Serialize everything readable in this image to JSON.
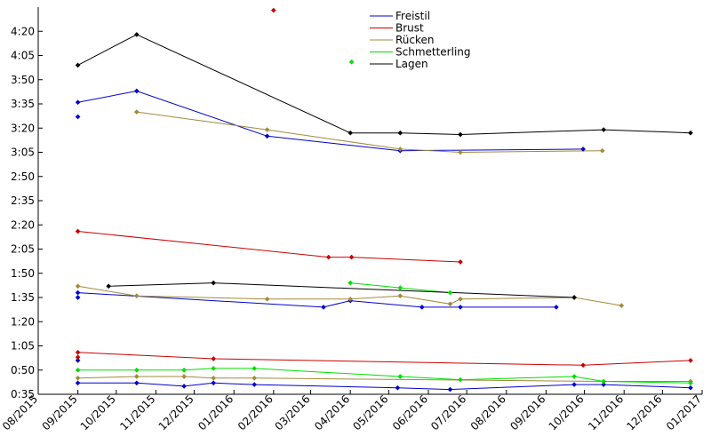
{
  "chart_data": {
    "type": "line",
    "title": "",
    "xlabel": "",
    "ylabel": "",
    "x_axis": {
      "type": "date",
      "range": [
        "2015-08-01",
        "2017-01-01"
      ],
      "tick_labels": [
        "08/2015",
        "09/2015",
        "10/2015",
        "11/2015",
        "12/2015",
        "01/2016",
        "02/2016",
        "03/2016",
        "04/2016",
        "05/2016",
        "06/2016",
        "07/2016",
        "08/2016",
        "09/2016",
        "10/2016",
        "11/2016",
        "12/2016",
        "01/2017"
      ]
    },
    "y_axis": {
      "unit": "seconds",
      "range": [
        35,
        275
      ],
      "tick_values": [
        35,
        50,
        65,
        80,
        95,
        110,
        125,
        140,
        155,
        170,
        185,
        200,
        215,
        230,
        245,
        260
      ],
      "tick_labels": [
        "0:35",
        "0:50",
        "1:05",
        "1:20",
        "1:35",
        "1:50",
        "2:05",
        "2:20",
        "2:35",
        "2:50",
        "3:05",
        "3:20",
        "3:35",
        "3:50",
        "4:05",
        "4:20"
      ]
    },
    "legend": {
      "position": "top-center",
      "entries": [
        {
          "name": "Freistil",
          "color": "#0000cc"
        },
        {
          "name": "Brust",
          "color": "#cc0000"
        },
        {
          "name": "Rücken",
          "color": "#a08a3c"
        },
        {
          "name": "Schmetterling",
          "color": "#00dd00"
        },
        {
          "name": "Lagen",
          "color": "#000000"
        }
      ]
    },
    "series": [
      {
        "name": "Freistil",
        "stroke": "Freistil",
        "group": "200m",
        "points": [
          [
            "2015-09-01",
            216
          ],
          [
            "2015-10-17",
            223
          ],
          [
            "2016-01-27",
            195
          ],
          [
            "2016-05-10",
            186
          ],
          [
            "2016-09-30",
            187
          ]
        ]
      },
      {
        "name": "Freistil",
        "stroke": "Freistil",
        "group": "200m-extra",
        "points": [
          [
            "2015-09-01",
            207
          ]
        ]
      },
      {
        "name": "Freistil",
        "stroke": "Freistil",
        "group": "100m",
        "points": [
          [
            "2015-09-01",
            98
          ],
          [
            "2016-03-11",
            89
          ],
          [
            "2016-04-01",
            93
          ],
          [
            "2016-05-27",
            89
          ],
          [
            "2016-06-26",
            89
          ],
          [
            "2016-09-09",
            89
          ]
        ]
      },
      {
        "name": "Freistil",
        "stroke": "Freistil",
        "group": "100m-extra",
        "points": [
          [
            "2015-09-01",
            95
          ]
        ]
      },
      {
        "name": "Freistil",
        "stroke": "Freistil",
        "group": "50m",
        "points": [
          [
            "2015-09-01",
            42
          ],
          [
            "2015-10-17",
            42
          ],
          [
            "2015-11-23",
            40
          ],
          [
            "2015-12-16",
            42
          ],
          [
            "2016-01-17",
            41
          ],
          [
            "2016-05-08",
            39
          ],
          [
            "2016-06-18",
            38
          ],
          [
            "2016-09-23",
            41
          ],
          [
            "2016-10-16",
            41
          ],
          [
            "2016-12-23",
            39
          ]
        ]
      },
      {
        "name": "Freistil",
        "stroke": "Freistil",
        "group": "50m-extra",
        "points": [
          [
            "2015-09-01",
            56
          ]
        ]
      },
      {
        "name": "Brust",
        "stroke": "Brust",
        "group": "100m",
        "points": [
          [
            "2015-09-01",
            136
          ],
          [
            "2016-03-15",
            120
          ],
          [
            "2016-04-02",
            120
          ],
          [
            "2016-06-26",
            117
          ]
        ]
      },
      {
        "name": "Brust",
        "stroke": "Brust",
        "group": "50m",
        "points": [
          [
            "2015-09-01",
            61
          ],
          [
            "2015-12-16",
            57
          ],
          [
            "2016-09-30",
            53
          ],
          [
            "2016-12-23",
            56
          ]
        ]
      },
      {
        "name": "Brust",
        "stroke": "Brust",
        "group": "50m-extra",
        "points": [
          [
            "2015-09-01",
            58
          ]
        ]
      },
      {
        "name": "Brust",
        "stroke": "Brust",
        "group": "outlier",
        "points": [
          [
            "2016-02-01",
            273
          ]
        ]
      },
      {
        "name": "Rücken",
        "stroke": "Rücken",
        "group": "200m",
        "points": [
          [
            "2015-10-17",
            210
          ],
          [
            "2016-01-27",
            199
          ],
          [
            "2016-05-10",
            187
          ],
          [
            "2016-06-26",
            185
          ],
          [
            "2016-10-15",
            186
          ]
        ]
      },
      {
        "name": "Rücken",
        "stroke": "Rücken",
        "group": "100m",
        "points": [
          [
            "2015-09-01",
            102
          ],
          [
            "2015-10-17",
            96
          ],
          [
            "2016-01-27",
            94
          ],
          [
            "2016-04-01",
            94
          ],
          [
            "2016-05-10",
            96
          ],
          [
            "2016-06-18",
            91
          ],
          [
            "2016-06-26",
            94
          ],
          [
            "2016-09-23",
            95
          ],
          [
            "2016-10-30",
            90
          ]
        ]
      },
      {
        "name": "Rücken",
        "stroke": "Rücken",
        "group": "50m",
        "points": [
          [
            "2015-09-01",
            45
          ],
          [
            "2015-10-17",
            46
          ],
          [
            "2015-11-23",
            46
          ],
          [
            "2015-12-16",
            45
          ],
          [
            "2016-01-17",
            45
          ],
          [
            "2016-10-16",
            43
          ],
          [
            "2016-12-23",
            43
          ]
        ]
      },
      {
        "name": "Schmetterling",
        "stroke": "Schmetterling",
        "group": "100m",
        "points": [
          [
            "2016-04-01",
            104
          ],
          [
            "2016-05-10",
            101
          ],
          [
            "2016-06-18",
            98
          ]
        ]
      },
      {
        "name": "Schmetterling",
        "stroke": "Schmetterling",
        "group": "50m",
        "points": [
          [
            "2015-09-01",
            50
          ],
          [
            "2015-10-17",
            50
          ],
          [
            "2015-11-23",
            50
          ],
          [
            "2015-12-16",
            51
          ],
          [
            "2016-01-17",
            51
          ],
          [
            "2016-05-10",
            46
          ],
          [
            "2016-06-26",
            44
          ],
          [
            "2016-09-23",
            46
          ],
          [
            "2016-10-16",
            43
          ],
          [
            "2016-12-23",
            42
          ]
        ]
      },
      {
        "name": "Schmetterling",
        "stroke": "Schmetterling",
        "group": "outlier",
        "points": [
          [
            "2016-04-02",
            241
          ]
        ]
      },
      {
        "name": "Lagen",
        "stroke": "Lagen",
        "group": "200m",
        "points": [
          [
            "2015-09-01",
            239
          ],
          [
            "2015-10-17",
            258
          ],
          [
            "2016-04-01",
            197
          ],
          [
            "2016-05-10",
            197
          ],
          [
            "2016-06-26",
            196
          ],
          [
            "2016-10-16",
            199
          ],
          [
            "2016-12-23",
            197
          ]
        ]
      },
      {
        "name": "Lagen",
        "stroke": "Lagen",
        "group": "100m",
        "points": [
          [
            "2015-09-25",
            102
          ],
          [
            "2015-12-16",
            104
          ],
          [
            "2016-09-23",
            95
          ]
        ]
      }
    ]
  }
}
